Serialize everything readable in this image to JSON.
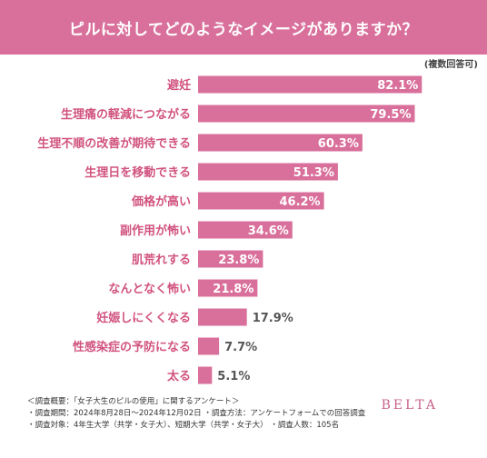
{
  "header": {
    "title": "ピルに対してどのようなイメージがありますか？",
    "note": "(複数回答可)"
  },
  "colors": {
    "accent": "#d9709b",
    "bar": "#d9709b",
    "label_inside": "#ffffff",
    "label_outside": "#555555",
    "category_text": "#d1537f"
  },
  "chart_data": {
    "type": "bar",
    "orientation": "horizontal",
    "categories": [
      "避妊",
      "生理痛の軽減につながる",
      "生理不順の改善が期待できる",
      "生理日を移動できる",
      "価格が高い",
      "副作用が怖い",
      "肌荒れする",
      "なんとなく怖い",
      "妊娠しにくくなる",
      "性感染症の予防になる",
      "太る"
    ],
    "values": [
      82.1,
      79.5,
      60.3,
      51.3,
      46.2,
      34.6,
      23.8,
      21.8,
      17.9,
      7.7,
      5.1
    ],
    "value_labels": [
      "82.1%",
      "79.5%",
      "60.3%",
      "51.3%",
      "46.2%",
      "34.6%",
      "23.8%",
      "21.8%",
      "17.9%",
      "7.7%",
      "5.1%"
    ],
    "xlim": [
      0,
      100
    ],
    "grid": false,
    "legend": "none"
  },
  "footer": {
    "line1": "＜調査概要：「女子大生のピルの使用」に関するアンケート＞",
    "line2": "・調査期間：2024年8月28日〜2024年12月02日 ・調査方法：アンケートフォームでの回答調査",
    "line3": "・調査対象：4年生大学（共学・女子大）、短期大学（共学・女子大） ・調査人数：105名"
  },
  "brand": "BELTA"
}
